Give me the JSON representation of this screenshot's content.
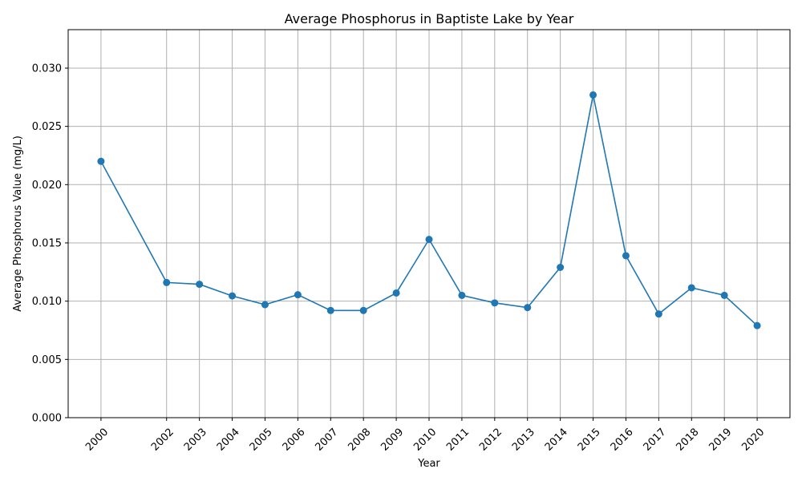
{
  "chart_data": {
    "type": "line",
    "title": "Average Phosphorus in Baptiste Lake by Year",
    "xlabel": "Year",
    "ylabel": "Average Phosphorus Value (mg/L)",
    "x": [
      2000,
      2002,
      2003,
      2004,
      2005,
      2006,
      2007,
      2008,
      2009,
      2010,
      2011,
      2012,
      2013,
      2014,
      2015,
      2016,
      2017,
      2018,
      2019,
      2020
    ],
    "series": [
      {
        "values": [
          0.022,
          0.0116,
          0.01145,
          0.01045,
          0.0097,
          0.01055,
          0.0092,
          0.0092,
          0.0107,
          0.0153,
          0.0105,
          0.00985,
          0.00945,
          0.0129,
          0.0277,
          0.0139,
          0.0089,
          0.01115,
          0.0105,
          0.0079
        ],
        "color": "#1f77b4"
      }
    ],
    "xlim": [
      1999,
      2021
    ],
    "ylim": [
      0,
      0.0333
    ],
    "yticks": [
      "0.000",
      "0.005",
      "0.010",
      "0.015",
      "0.020",
      "0.025",
      "0.030"
    ],
    "xticks": [
      "2000",
      "2002",
      "2003",
      "2004",
      "2005",
      "2006",
      "2007",
      "2008",
      "2009",
      "2010",
      "2011",
      "2012",
      "2013",
      "2014",
      "2015",
      "2016",
      "2017",
      "2018",
      "2019",
      "2020"
    ],
    "grid": true,
    "marker": "circle"
  }
}
